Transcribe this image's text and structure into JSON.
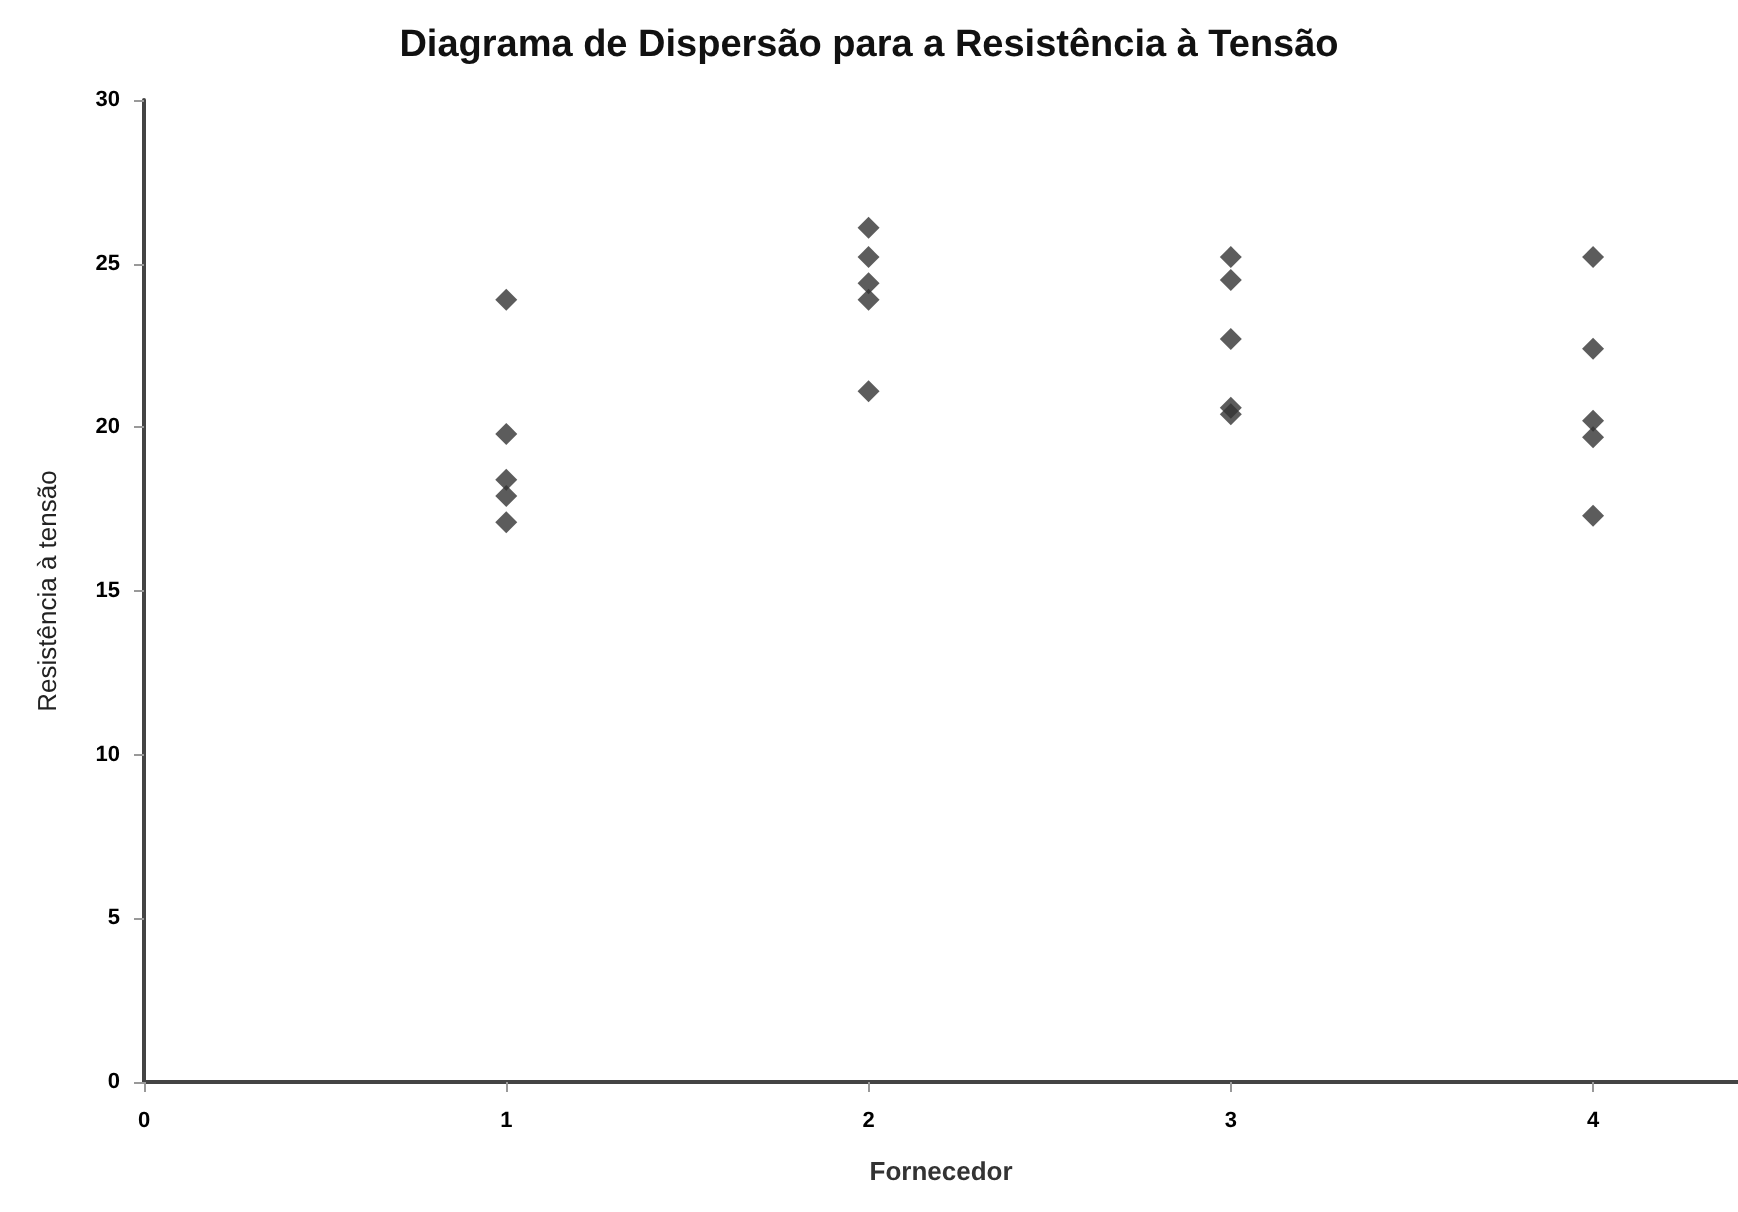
{
  "chart_data": {
    "type": "scatter",
    "title": "Diagrama de Dispersão para a Resistência à Tensão",
    "xlabel": "Fornecedor",
    "ylabel": "Resistência à tensão",
    "series": [
      {
        "color": "#333333",
        "x": [
          1,
          1,
          1,
          1,
          1,
          2,
          2,
          2,
          2,
          2,
          3,
          3,
          3,
          3,
          3,
          4,
          4,
          4,
          4,
          4
        ],
        "values": [
          23.9,
          19.8,
          18.4,
          17.9,
          17.1,
          26.1,
          25.2,
          24.4,
          23.9,
          21.1,
          25.2,
          24.5,
          22.7,
          20.6,
          20.4,
          25.2,
          22.4,
          20.2,
          19.7,
          17.3
        ]
      }
    ],
    "xlim": [
      0,
      4.4
    ],
    "xticks": [
      0,
      1,
      2,
      3,
      4
    ],
    "ylim": [
      0,
      30
    ],
    "yticks": [
      0,
      5,
      10,
      15,
      20,
      25,
      30
    ],
    "grid": false,
    "marker": "diamond"
  }
}
